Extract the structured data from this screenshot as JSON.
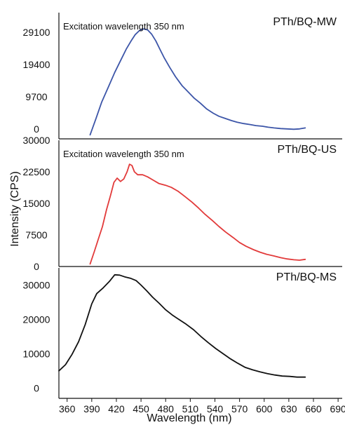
{
  "chart_data": {
    "type": "line",
    "xlabel": "Wavelength (nm)",
    "ylabel": "Intensity (CPS)",
    "x_ticks": [
      360,
      390,
      420,
      450,
      480,
      510,
      540,
      570,
      600,
      630,
      660,
      690
    ],
    "xlim": [
      350,
      695
    ],
    "grid": false,
    "panels": [
      {
        "name": "PTh/BQ-MW",
        "annotation": "Excitation wavelength 350 nm",
        "color": "#3c55a8",
        "y_ticks": [
          0,
          9700,
          19400,
          29100
        ],
        "ylim": [
          -3000,
          35000
        ],
        "points": [
          [
            388,
            -1800
          ],
          [
            395,
            3000
          ],
          [
            402,
            8000
          ],
          [
            410,
            12500
          ],
          [
            418,
            17000
          ],
          [
            425,
            20500
          ],
          [
            432,
            24000
          ],
          [
            438,
            26500
          ],
          [
            443,
            28400
          ],
          [
            448,
            29600
          ],
          [
            453,
            30100
          ],
          [
            458,
            29800
          ],
          [
            463,
            28500
          ],
          [
            468,
            26500
          ],
          [
            473,
            24000
          ],
          [
            478,
            21500
          ],
          [
            485,
            18500
          ],
          [
            492,
            15700
          ],
          [
            500,
            13000
          ],
          [
            508,
            11000
          ],
          [
            515,
            9200
          ],
          [
            522,
            7800
          ],
          [
            530,
            6000
          ],
          [
            538,
            4700
          ],
          [
            545,
            3800
          ],
          [
            552,
            3200
          ],
          [
            560,
            2500
          ],
          [
            567,
            2000
          ],
          [
            575,
            1600
          ],
          [
            583,
            1300
          ],
          [
            590,
            1000
          ],
          [
            598,
            800
          ],
          [
            605,
            500
          ],
          [
            612,
            300
          ],
          [
            620,
            100
          ],
          [
            628,
            0
          ],
          [
            636,
            -100
          ],
          [
            643,
            0
          ],
          [
            650,
            300
          ]
        ]
      },
      {
        "name": "PTh/BQ-US",
        "annotation": "Excitation wavelength 350 nm",
        "color": "#e23a3a",
        "y_ticks": [
          0,
          7500,
          15000,
          22500,
          30000
        ],
        "ylim": [
          0,
          30000
        ],
        "points": [
          [
            388,
            600
          ],
          [
            393,
            3500
          ],
          [
            398,
            6500
          ],
          [
            403,
            9500
          ],
          [
            408,
            13500
          ],
          [
            413,
            17000
          ],
          [
            417,
            20000
          ],
          [
            421,
            21000
          ],
          [
            425,
            20200
          ],
          [
            429,
            20800
          ],
          [
            433,
            22500
          ],
          [
            436,
            24300
          ],
          [
            439,
            24000
          ],
          [
            442,
            22500
          ],
          [
            446,
            21800
          ],
          [
            452,
            21800
          ],
          [
            458,
            21300
          ],
          [
            465,
            20500
          ],
          [
            472,
            19700
          ],
          [
            480,
            19300
          ],
          [
            487,
            18800
          ],
          [
            495,
            17900
          ],
          [
            503,
            16700
          ],
          [
            512,
            15300
          ],
          [
            520,
            13900
          ],
          [
            528,
            12400
          ],
          [
            537,
            10900
          ],
          [
            545,
            9500
          ],
          [
            553,
            8200
          ],
          [
            562,
            6900
          ],
          [
            570,
            5700
          ],
          [
            578,
            4800
          ],
          [
            587,
            4000
          ],
          [
            595,
            3400
          ],
          [
            603,
            2900
          ],
          [
            612,
            2500
          ],
          [
            620,
            2100
          ],
          [
            628,
            1800
          ],
          [
            636,
            1600
          ],
          [
            643,
            1500
          ],
          [
            650,
            1700
          ]
        ]
      },
      {
        "name": "PTh/BQ-MS",
        "annotation": "",
        "color": "#111111",
        "y_ticks": [
          0,
          10000,
          20000,
          30000
        ],
        "ylim": [
          -3000,
          35000
        ],
        "points": [
          [
            350,
            5000
          ],
          [
            358,
            6800
          ],
          [
            366,
            9800
          ],
          [
            374,
            13500
          ],
          [
            382,
            18500
          ],
          [
            390,
            24500
          ],
          [
            396,
            27500
          ],
          [
            404,
            29200
          ],
          [
            412,
            31200
          ],
          [
            418,
            33000
          ],
          [
            424,
            32900
          ],
          [
            430,
            32400
          ],
          [
            437,
            32000
          ],
          [
            444,
            31300
          ],
          [
            450,
            30000
          ],
          [
            457,
            28300
          ],
          [
            464,
            26500
          ],
          [
            472,
            24700
          ],
          [
            480,
            22800
          ],
          [
            488,
            21300
          ],
          [
            496,
            20000
          ],
          [
            505,
            18600
          ],
          [
            514,
            17000
          ],
          [
            523,
            15000
          ],
          [
            532,
            13200
          ],
          [
            541,
            11500
          ],
          [
            550,
            10000
          ],
          [
            559,
            8500
          ],
          [
            568,
            7200
          ],
          [
            577,
            6000
          ],
          [
            586,
            5300
          ],
          [
            595,
            4700
          ],
          [
            604,
            4200
          ],
          [
            613,
            3800
          ],
          [
            622,
            3500
          ],
          [
            631,
            3400
          ],
          [
            640,
            3200
          ],
          [
            650,
            3200
          ]
        ]
      }
    ]
  }
}
